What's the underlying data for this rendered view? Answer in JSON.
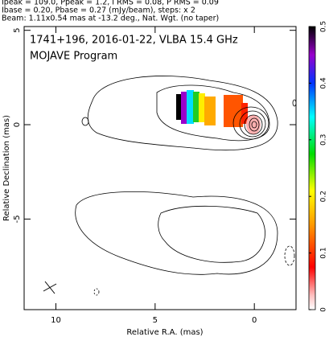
{
  "chart_data": {
    "type": "contour",
    "header": [
      "Ipeak = 109.0, Ppeak = 1.2, I RMS = 0.08, P RMS = 0.09",
      "Ibase = 0.20, Pbase = 0.27 (mJy/beam), steps: x 2",
      "Beam: 1.11x0.54 mas at -13.2 deg., Nat. Wgt. (no taper)"
    ],
    "title": "1741+196, 2016-01-22, VLBA 15.4 GHz",
    "subtitle": "MOJAVE Program",
    "x_label": "Relative R.A. (mas)",
    "y_label": "Relative Declination (mas)",
    "xlim": [
      11.6,
      -2.1
    ],
    "xticks": [
      10,
      5,
      0
    ],
    "ylim": [
      -9.8,
      5.2
    ],
    "yticks": [
      5,
      0,
      -5
    ],
    "colorbar_lim": [
      0,
      0.5
    ],
    "colorbar_ticks": [
      0,
      0.1,
      0.2,
      0.3,
      0.4,
      0.5
    ]
  }
}
